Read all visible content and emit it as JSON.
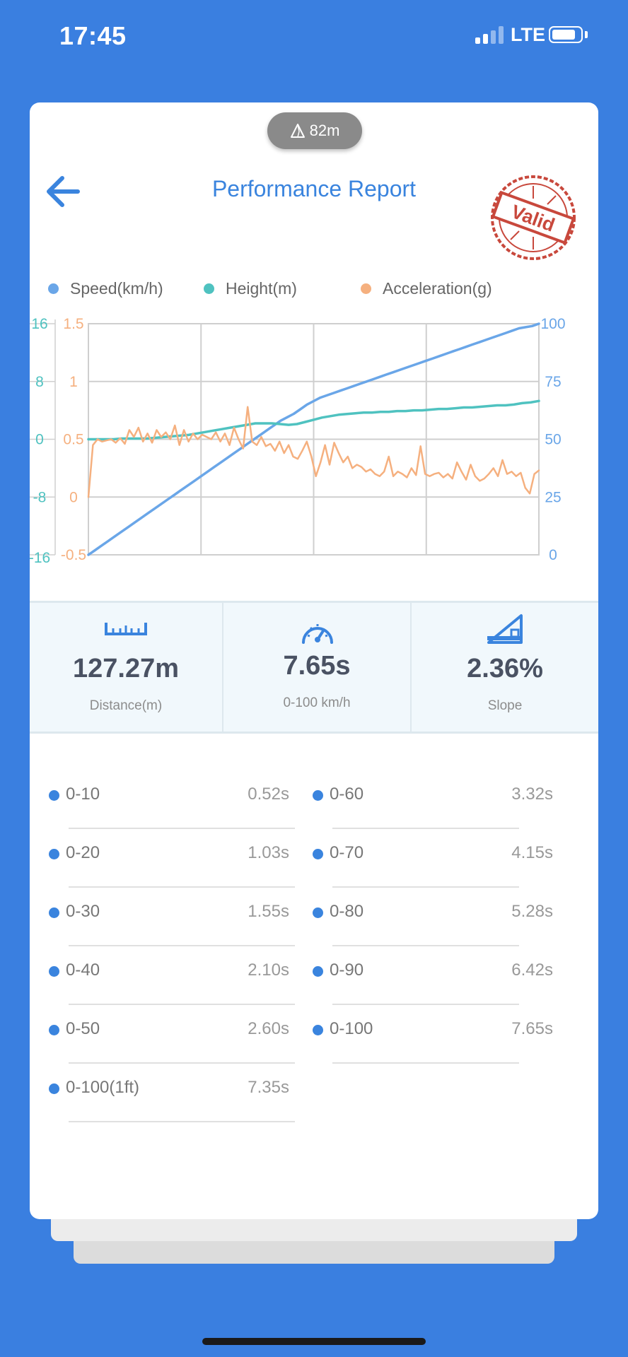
{
  "status_bar": {
    "time": "17:45",
    "network": "LTE"
  },
  "header": {
    "altitude": "82m",
    "title": "Performance Report",
    "stamp_text": "Valid"
  },
  "legend": [
    {
      "label": "Speed(km/h)",
      "color": "#6aa6e8"
    },
    {
      "label": "Height(m)",
      "color": "#4fc2c0"
    },
    {
      "label": "Acceleration(g)",
      "color": "#f5b07f"
    }
  ],
  "chart_data": {
    "type": "line",
    "y_axes": {
      "height_ticks": [
        "16",
        "8",
        "0",
        "-8",
        "-16"
      ],
      "height_range": [
        -16,
        16
      ],
      "acceleration_ticks": [
        "1.5",
        "1",
        "0.5",
        "0",
        "-0.5"
      ],
      "acceleration_range": [
        -0.5,
        1.5
      ],
      "speed_ticks": [
        "100",
        "75",
        "50",
        "25",
        "0"
      ],
      "speed_range": [
        0,
        100
      ]
    },
    "grid": true,
    "series": [
      {
        "name": "Speed(km/h)",
        "color": "#6aa6e8",
        "axis": "speed",
        "values": [
          0,
          2,
          4,
          6,
          8,
          10,
          12,
          14,
          16,
          18,
          20,
          22,
          24,
          26,
          28,
          30,
          32,
          34,
          36,
          38,
          40,
          42,
          44,
          46,
          48,
          50,
          52,
          54,
          56,
          58,
          59.5,
          61,
          63,
          65,
          66.5,
          68,
          69,
          70,
          71,
          72,
          73,
          74,
          75,
          76,
          77,
          78,
          79,
          80,
          81,
          82,
          83,
          84,
          85,
          86,
          87,
          88,
          89,
          90,
          91,
          92,
          93,
          94,
          95,
          96,
          97,
          98,
          98.5,
          99,
          100
        ]
      },
      {
        "name": "Height(m)",
        "color": "#4fc2c0",
        "axis": "height",
        "values": [
          0,
          0,
          0,
          0,
          0.1,
          0.1,
          0.1,
          0.1,
          0.2,
          0.3,
          0.4,
          0.5,
          0.6,
          0.8,
          1.0,
          1.2,
          1.4,
          1.6,
          1.8,
          2.0,
          2.2,
          2.2,
          2.2,
          2.1,
          2.0,
          2.1,
          2.4,
          2.7,
          3.0,
          3.2,
          3.4,
          3.5,
          3.6,
          3.7,
          3.7,
          3.8,
          3.8,
          3.9,
          3.9,
          4.0,
          4.0,
          4.1,
          4.2,
          4.2,
          4.3,
          4.4,
          4.4,
          4.5,
          4.6,
          4.7,
          4.7,
          4.8,
          5.0,
          5.1,
          5.3
        ]
      },
      {
        "name": "Acceleration(g)",
        "color": "#f5b07f",
        "axis": "acceleration",
        "values": [
          0.0,
          0.45,
          0.5,
          0.48,
          0.49,
          0.5,
          0.47,
          0.51,
          0.46,
          0.58,
          0.52,
          0.6,
          0.48,
          0.55,
          0.47,
          0.58,
          0.52,
          0.56,
          0.5,
          0.62,
          0.45,
          0.58,
          0.48,
          0.55,
          0.5,
          0.54,
          0.52,
          0.5,
          0.56,
          0.48,
          0.55,
          0.45,
          0.6,
          0.5,
          0.42,
          0.78,
          0.48,
          0.45,
          0.52,
          0.44,
          0.46,
          0.4,
          0.48,
          0.38,
          0.45,
          0.35,
          0.33,
          0.4,
          0.48,
          0.35,
          0.18,
          0.3,
          0.45,
          0.28,
          0.47,
          0.38,
          0.3,
          0.35,
          0.25,
          0.28,
          0.26,
          0.22,
          0.24,
          0.2,
          0.18,
          0.22,
          0.35,
          0.18,
          0.22,
          0.2,
          0.17,
          0.25,
          0.19,
          0.44,
          0.2,
          0.18,
          0.2,
          0.21,
          0.17,
          0.2,
          0.16,
          0.3,
          0.22,
          0.15,
          0.28,
          0.18,
          0.14,
          0.16,
          0.2,
          0.25,
          0.18,
          0.32,
          0.2,
          0.22,
          0.18,
          0.21,
          0.08,
          0.03,
          0.2,
          0.23
        ]
      }
    ]
  },
  "stats": [
    {
      "value": "127.27m",
      "label": "Distance(m)",
      "icon": "ruler-icon"
    },
    {
      "value": "7.65s",
      "label": "0-100 km/h",
      "icon": "speedometer-icon"
    },
    {
      "value": "2.36%",
      "label": "Slope",
      "icon": "slope-icon"
    }
  ],
  "splits_left": [
    {
      "label": "0-10",
      "time": "0.52s"
    },
    {
      "label": "0-20",
      "time": "1.03s"
    },
    {
      "label": "0-30",
      "time": "1.55s"
    },
    {
      "label": "0-40",
      "time": "2.10s"
    },
    {
      "label": "0-50",
      "time": "2.60s"
    },
    {
      "label": "0-100(1ft)",
      "time": "7.35s"
    }
  ],
  "splits_right": [
    {
      "label": "0-60",
      "time": "3.32s"
    },
    {
      "label": "0-70",
      "time": "4.15s"
    },
    {
      "label": "0-80",
      "time": "5.28s"
    },
    {
      "label": "0-90",
      "time": "6.42s"
    },
    {
      "label": "0-100",
      "time": "7.65s"
    }
  ]
}
